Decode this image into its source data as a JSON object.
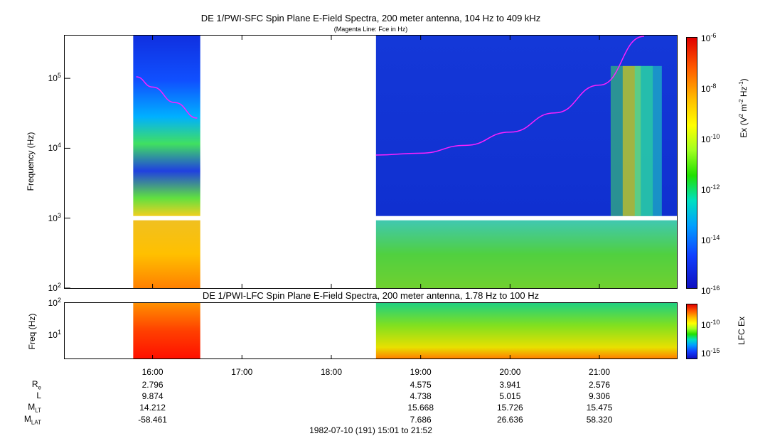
{
  "sfc": {
    "title": "DE 1/PWI-SFC  Spin Plane E-Field Spectra, 200 meter antenna, 104 Hz to 409 kHz",
    "subtitle": "(Magenta Line: Fce in Hz)",
    "ylabel": "Frequency (Hz)",
    "yticks": [
      {
        "base": "10",
        "exp": "5"
      },
      {
        "base": "10",
        "exp": "4"
      },
      {
        "base": "10",
        "exp": "3"
      },
      {
        "base": "10",
        "exp": "2"
      }
    ],
    "colorbar_label": "Ex (V",
    "colorbar_label_sup1": "2",
    "colorbar_label_mid": " m",
    "colorbar_label_sup2": "-2",
    "colorbar_label_mid2": " Hz",
    "colorbar_label_sup3": "-1",
    "colorbar_label_end": ")",
    "colorbar_ticks": [
      {
        "base": "10",
        "exp": "-6"
      },
      {
        "base": "10",
        "exp": "-8"
      },
      {
        "base": "10",
        "exp": "-10"
      },
      {
        "base": "10",
        "exp": "-12"
      },
      {
        "base": "10",
        "exp": "-14"
      },
      {
        "base": "10",
        "exp": "-16"
      }
    ]
  },
  "lfc": {
    "title": "DE 1/PWI-LFC  Spin Plane E-Field Spectra, 200 meter antenna, 1.78 Hz to 100 Hz",
    "ylabel": "Freq (Hz)",
    "yticks": [
      {
        "base": "10",
        "exp": "2"
      },
      {
        "base": "10",
        "exp": "1"
      }
    ],
    "colorbar_label": "LFC Ex",
    "colorbar_ticks": [
      {
        "base": "10",
        "exp": "-10"
      },
      {
        "base": "10",
        "exp": "-15"
      }
    ]
  },
  "time_ticks": [
    "16:00",
    "17:00",
    "18:00",
    "19:00",
    "20:00",
    "21:00"
  ],
  "ephemeris": {
    "labels": [
      {
        "main": "R",
        "sub": "e"
      },
      {
        "main": "L",
        "sub": ""
      },
      {
        "main": "M",
        "sub": "LT"
      },
      {
        "main": "M",
        "sub": "LAT"
      }
    ],
    "columns": [
      {
        "time": "16:00",
        "values": [
          "2.796",
          "9.874",
          "14.212",
          "-58.461"
        ]
      },
      {
        "time": "19:00",
        "values": [
          "4.575",
          "4.738",
          "15.668",
          "7.686"
        ]
      },
      {
        "time": "20:00",
        "values": [
          "3.941",
          "5.015",
          "15.726",
          "26.636"
        ]
      },
      {
        "time": "21:00",
        "values": [
          "2.576",
          "9.306",
          "15.475",
          "58.320"
        ]
      }
    ]
  },
  "footer": "1982-07-10 (191) 15:01 to 21:52",
  "chart_data": [
    {
      "type": "heatmap",
      "title": "DE 1/PWI-SFC  Spin Plane E-Field Spectra, 200 meter antenna, 104 Hz to 409 kHz",
      "xlabel": "",
      "ylabel": "Frequency (Hz)",
      "yscale": "log",
      "ylim": [
        100,
        409000
      ],
      "xlim": [
        "15:01",
        "21:52"
      ],
      "colorbar": {
        "label": "Ex (V^2 m^-2 Hz^-1)",
        "scale": "log",
        "range": [
          1e-16,
          1e-06
        ]
      },
      "data_intervals": [
        [
          "15:47",
          "16:32"
        ],
        [
          "18:30",
          "21:52"
        ]
      ],
      "gap_frequency_hz": 1000,
      "magenta_fce_line": {
        "label": "Fce in Hz",
        "segments": [
          {
            "times": [
              "15:49",
              "16:00",
              "16:15",
              "16:30"
            ],
            "freq_hz": [
              105000,
              75000,
              45000,
              27000
            ]
          },
          {
            "times": [
              "18:30",
              "19:00",
              "19:30",
              "20:00",
              "20:30",
              "21:00",
              "21:30"
            ],
            "freq_hz": [
              8000,
              8500,
              11000,
              17000,
              32000,
              80000,
              400000
            ]
          }
        ]
      }
    },
    {
      "type": "heatmap",
      "title": "DE 1/PWI-LFC  Spin Plane E-Field Spectra, 200 meter antenna, 1.78 Hz to 100 Hz",
      "ylabel": "Freq (Hz)",
      "yscale": "log",
      "ylim": [
        1.78,
        100
      ],
      "xlim": [
        "15:01",
        "21:52"
      ],
      "colorbar": {
        "label": "LFC Ex",
        "scale": "log"
      },
      "data_intervals": [
        [
          "15:47",
          "16:32"
        ],
        [
          "18:30",
          "21:52"
        ]
      ]
    }
  ]
}
